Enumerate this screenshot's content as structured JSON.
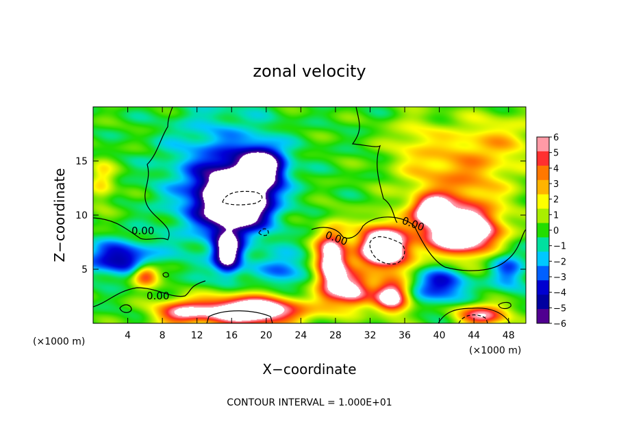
{
  "chart_data": {
    "type": "heatmap",
    "title": "zonal velocity",
    "xlabel": "X−coordinate",
    "ylabel": "Z−coordinate",
    "x_unit": "(×1000 m)",
    "y_unit": "(×1000 m)",
    "xlim": [
      0,
      50
    ],
    "ylim": [
      0,
      20
    ],
    "x_ticks": [
      "4",
      "8",
      "12",
      "16",
      "20",
      "24",
      "28",
      "32",
      "36",
      "40",
      "44",
      "48"
    ],
    "y_ticks": [
      "5",
      "10",
      "15"
    ],
    "colorbar": {
      "min": -6,
      "max": 6,
      "labels": [
        "6",
        "5",
        "4",
        "3",
        "2",
        "1",
        "0",
        "−1",
        "−2",
        "−3",
        "−4",
        "−5",
        "−6"
      ],
      "colors": [
        "#ff9aa6",
        "#ff3030",
        "#ff7800",
        "#ffb400",
        "#ffff00",
        "#aaee00",
        "#22dd00",
        "#00e0a0",
        "#00c8ff",
        "#0060ff",
        "#0000d0",
        "#0000a0",
        "#500090"
      ]
    },
    "contour_labels": [
      "0.00",
      "0.00",
      "0.00",
      "0.00"
    ],
    "contour_interval": "CONTOUR INTERVAL = 1.000E+01",
    "features": [
      {
        "x": 16.5,
        "z": 11.5,
        "sx": 3.5,
        "sz": 2.5,
        "amp": -12
      },
      {
        "x": 19.5,
        "z": 14.5,
        "sx": 2.5,
        "sz": 1.8,
        "amp": -8
      },
      {
        "x": 15.5,
        "z": 6.5,
        "sx": 1.5,
        "sz": 1.8,
        "amp": -8
      },
      {
        "x": 14.5,
        "z": 13.0,
        "sx": 6.0,
        "sz": 6.0,
        "amp": -3.5
      },
      {
        "x": 33.5,
        "z": 7.0,
        "sx": 3.0,
        "sz": 2.0,
        "amp": 11
      },
      {
        "x": 42.5,
        "z": 8.5,
        "sx": 4.0,
        "sz": 2.0,
        "amp": 11
      },
      {
        "x": 39.0,
        "z": 10.5,
        "sx": 2.0,
        "sz": 1.2,
        "amp": 7
      },
      {
        "x": 42.0,
        "z": 13.0,
        "sx": 6.0,
        "sz": 4.0,
        "amp": 3.5
      },
      {
        "x": 47.0,
        "z": 17.0,
        "sx": 5.0,
        "sz": 2.5,
        "amp": 2
      },
      {
        "x": 27.5,
        "z": 5.5,
        "sx": 1.8,
        "sz": 3.0,
        "amp": 9
      },
      {
        "x": 30.0,
        "z": 3.0,
        "sx": 2.0,
        "sz": 1.5,
        "amp": 7
      },
      {
        "x": 34.5,
        "z": 2.5,
        "sx": 2.0,
        "sz": 1.5,
        "amp": 8
      },
      {
        "x": 18.0,
        "z": 1.2,
        "sx": 6.0,
        "sz": 1.3,
        "amp": 10
      },
      {
        "x": 10.0,
        "z": 1.0,
        "sx": 3.0,
        "sz": 1.2,
        "amp": 5
      },
      {
        "x": 45.0,
        "z": 0.8,
        "sx": 3.0,
        "sz": 1.0,
        "amp": 6
      },
      {
        "x": 40.0,
        "z": 3.5,
        "sx": 3.0,
        "sz": 1.5,
        "amp": -4.5
      },
      {
        "x": 3.0,
        "z": 6.0,
        "sx": 4.0,
        "sz": 1.5,
        "amp": -5
      },
      {
        "x": 6.0,
        "z": 4.5,
        "sx": 1.5,
        "sz": 1.0,
        "amp": 6
      },
      {
        "x": 22.0,
        "z": 5.0,
        "sx": 2.5,
        "sz": 1.5,
        "amp": -3
      },
      {
        "x": 48.0,
        "z": 5.0,
        "sx": 2.0,
        "sz": 2.0,
        "amp": -3
      },
      {
        "x": 37.0,
        "z": 17.0,
        "sx": 3.0,
        "sz": 2.5,
        "amp": 1.5
      },
      {
        "x": 1.0,
        "z": 13.0,
        "sx": 1.5,
        "sz": 2.0,
        "amp": 2.5
      }
    ]
  }
}
